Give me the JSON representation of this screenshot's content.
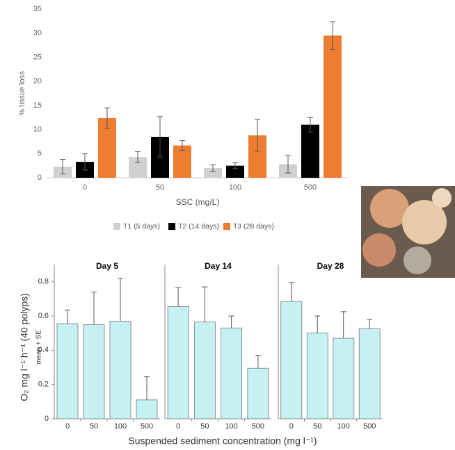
{
  "chart_data": [
    {
      "type": "bar",
      "y_label": "% tissue loss",
      "x_label": "SSC (mg/L)",
      "categories": [
        "0",
        "50",
        "100",
        "500"
      ],
      "series": [
        {
          "name": "T1 (5 days)",
          "color": "#d0d0d0",
          "values": [
            2.3,
            4.3,
            2.0,
            2.8
          ],
          "errors": [
            1.5,
            1.1,
            0.7,
            1.8
          ]
        },
        {
          "name": "T2 (14 days)",
          "color": "#000000",
          "values": [
            3.3,
            8.5,
            2.5,
            11.0
          ],
          "errors": [
            1.7,
            4.2,
            0.6,
            1.5
          ]
        },
        {
          "name": "T3 (28 days)",
          "color": "#ed7d31",
          "values": [
            12.4,
            6.7,
            8.8,
            29.5
          ],
          "errors": [
            2.1,
            1.0,
            3.3,
            2.9
          ]
        }
      ],
      "ylim": [
        0,
        35
      ],
      "yticks": [
        0,
        5,
        10,
        15,
        20,
        25,
        30,
        35
      ],
      "legend": "bottom"
    },
    {
      "type": "bar",
      "title": "Day 5",
      "categories": [
        "0",
        "50",
        "100",
        "500"
      ],
      "color": "#c6f1f3",
      "values": [
        0.555,
        0.55,
        0.57,
        0.11
      ],
      "errors": [
        0.08,
        0.19,
        0.25,
        0.135
      ],
      "ylim": [
        0,
        0.9
      ],
      "yticks": [
        0,
        0.2,
        0.4,
        0.6,
        0.8
      ]
    },
    {
      "type": "bar",
      "title": "Day 14",
      "categories": [
        "0",
        "50",
        "100",
        "500"
      ],
      "color": "#c6f1f3",
      "values": [
        0.655,
        0.565,
        0.53,
        0.295
      ],
      "errors": [
        0.11,
        0.205,
        0.07,
        0.075
      ],
      "ylim": [
        0,
        0.9
      ]
    },
    {
      "type": "bar",
      "title": "Day 28",
      "categories": [
        "0",
        "50",
        "100",
        "500"
      ],
      "color": "#c6f1f3",
      "values": [
        0.685,
        0.5,
        0.47,
        0.525
      ],
      "errors": [
        0.11,
        0.1,
        0.155,
        0.055
      ],
      "ylim": [
        0,
        0.9
      ]
    }
  ],
  "bottom_figure": {
    "y_label": "O₂ mg l⁻¹ h⁻¹ (40 polyps)",
    "y_label_note": "mean + SE",
    "x_label": "Suspended sediment concentration (mg l⁻¹)"
  }
}
